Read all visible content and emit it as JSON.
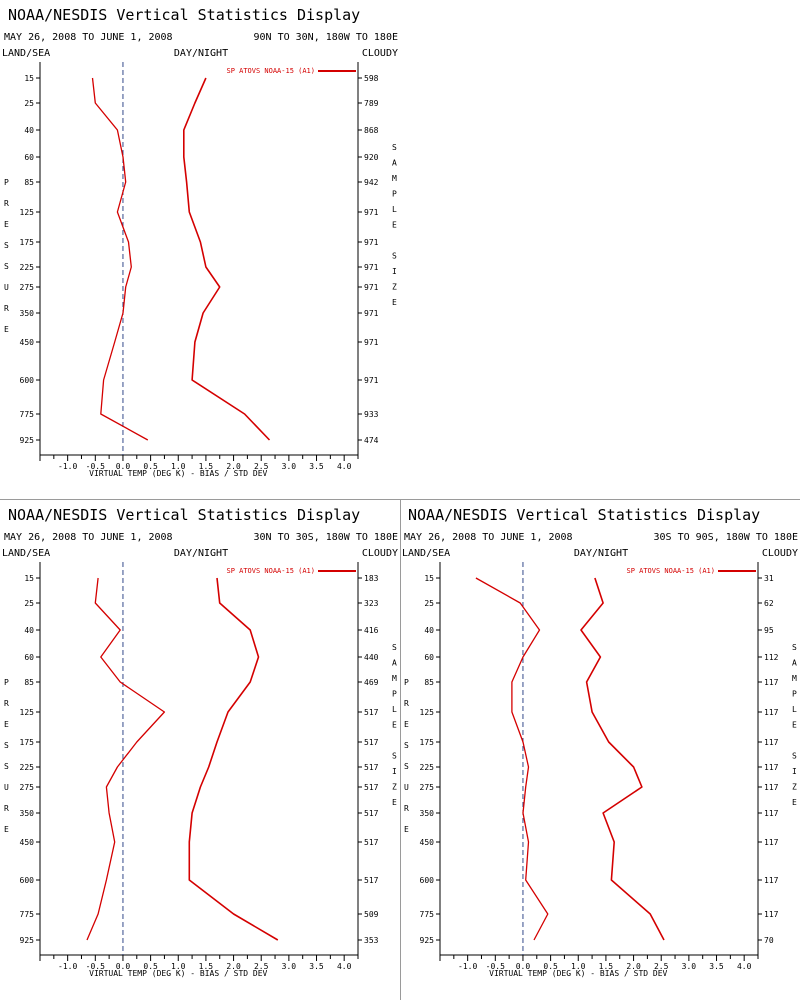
{
  "chart_data": [
    {
      "type": "line",
      "title": "NOAA/NESDIS Vertical Statistics Display",
      "date_range": "MAY 26, 2008 TO JUNE 1, 2008",
      "region": "90N TO 30N, 180W TO 180E",
      "flags": [
        "LAND/SEA",
        "DAY/NIGHT",
        "CLOUDY"
      ],
      "ylabel": "PRESSURE",
      "y2label": "SAMPLE SIZE",
      "xlabel": "VIRTUAL TEMP (DEG K) - BIAS / STD DEV",
      "xlim": [
        -1.5,
        4.25
      ],
      "xticks": [
        "-1.0",
        "-0.5",
        "0.0",
        "0.5",
        "1.0",
        "1.5",
        "2.0",
        "2.5",
        "3.0",
        "3.5",
        "4.0"
      ],
      "pressure_levels": [
        "15",
        "25",
        "40",
        "60",
        "85",
        "125",
        "175",
        "225",
        "275",
        "350",
        "450",
        "600",
        "775",
        "925"
      ],
      "sample_sizes": [
        "598",
        "789",
        "868",
        "920",
        "942",
        "971",
        "971",
        "971",
        "971",
        "971",
        "971",
        "971",
        "933",
        "474"
      ],
      "series": [
        {
          "name": "SP ATOVS NOAA-15 (A1)",
          "values": [
            -0.55,
            -0.5,
            -0.1,
            0.0,
            0.05,
            -0.1,
            0.1,
            0.15,
            0.05,
            0.0,
            -0.15,
            -0.35,
            -0.4,
            0.45
          ],
          "color": "#d40000"
        },
        {
          "values": [
            1.5,
            1.3,
            1.1,
            1.1,
            1.15,
            1.2,
            1.4,
            1.5,
            1.75,
            1.45,
            1.3,
            1.25,
            2.2,
            2.65
          ],
          "color": "#d40000"
        }
      ]
    },
    {
      "type": "line",
      "title": "NOAA/NESDIS Vertical Statistics Display",
      "date_range": "MAY 26, 2008 TO JUNE 1, 2008",
      "region": "30N TO 30S, 180W TO 180E",
      "flags": [
        "LAND/SEA",
        "DAY/NIGHT",
        "CLOUDY"
      ],
      "ylabel": "PRESSURE",
      "y2label": "SAMPLE SIZE",
      "xlabel": "VIRTUAL TEMP (DEG K) - BIAS / STD DEV",
      "xlim": [
        -1.5,
        4.25
      ],
      "xticks": [
        "-1.0",
        "-0.5",
        "0.0",
        "0.5",
        "1.0",
        "1.5",
        "2.0",
        "2.5",
        "3.0",
        "3.5",
        "4.0"
      ],
      "pressure_levels": [
        "15",
        "25",
        "40",
        "60",
        "85",
        "125",
        "175",
        "225",
        "275",
        "350",
        "450",
        "600",
        "775",
        "925"
      ],
      "sample_sizes": [
        "183",
        "323",
        "416",
        "440",
        "469",
        "517",
        "517",
        "517",
        "517",
        "517",
        "517",
        "517",
        "509",
        "353"
      ],
      "series": [
        {
          "name": "SP ATOVS NOAA-15 (A1)",
          "values": [
            -0.45,
            -0.5,
            -0.05,
            -0.4,
            -0.05,
            0.75,
            0.25,
            -0.1,
            -0.3,
            -0.25,
            -0.15,
            -0.3,
            -0.45,
            -0.65
          ],
          "color": "#d40000"
        },
        {
          "values": [
            1.7,
            1.75,
            2.3,
            2.45,
            2.3,
            1.9,
            1.7,
            1.55,
            1.4,
            1.25,
            1.2,
            1.2,
            2.0,
            2.8
          ],
          "color": "#d40000"
        }
      ]
    },
    {
      "type": "line",
      "title": "NOAA/NESDIS Vertical Statistics Display",
      "date_range": "MAY 26, 2008 TO JUNE 1, 2008",
      "region": "30S TO 90S, 180W TO 180E",
      "flags": [
        "LAND/SEA",
        "DAY/NIGHT",
        "CLOUDY"
      ],
      "ylabel": "PRESSURE",
      "y2label": "SAMPLE SIZE",
      "xlabel": "VIRTUAL TEMP (DEG K) - BIAS / STD DEV",
      "xlim": [
        -1.5,
        4.25
      ],
      "xticks": [
        "-1.0",
        "-0.5",
        "0.0",
        "0.5",
        "1.0",
        "1.5",
        "2.0",
        "2.5",
        "3.0",
        "3.5",
        "4.0"
      ],
      "pressure_levels": [
        "15",
        "25",
        "40",
        "60",
        "85",
        "125",
        "175",
        "225",
        "275",
        "350",
        "450",
        "600",
        "775",
        "925"
      ],
      "sample_sizes": [
        "31",
        "62",
        "95",
        "112",
        "117",
        "117",
        "117",
        "117",
        "117",
        "117",
        "117",
        "117",
        "117",
        "70"
      ],
      "series": [
        {
          "name": "SP ATOVS NOAA-15 (A1)",
          "values": [
            -0.85,
            -0.05,
            0.3,
            0.0,
            -0.2,
            -0.2,
            0.0,
            0.1,
            0.05,
            0.0,
            0.1,
            0.05,
            0.45,
            0.2
          ],
          "color": "#d40000"
        },
        {
          "values": [
            1.3,
            1.45,
            1.05,
            1.4,
            1.15,
            1.25,
            1.55,
            2.0,
            2.15,
            1.45,
            1.65,
            1.6,
            2.3,
            2.55
          ],
          "color": "#d40000"
        }
      ]
    }
  ]
}
